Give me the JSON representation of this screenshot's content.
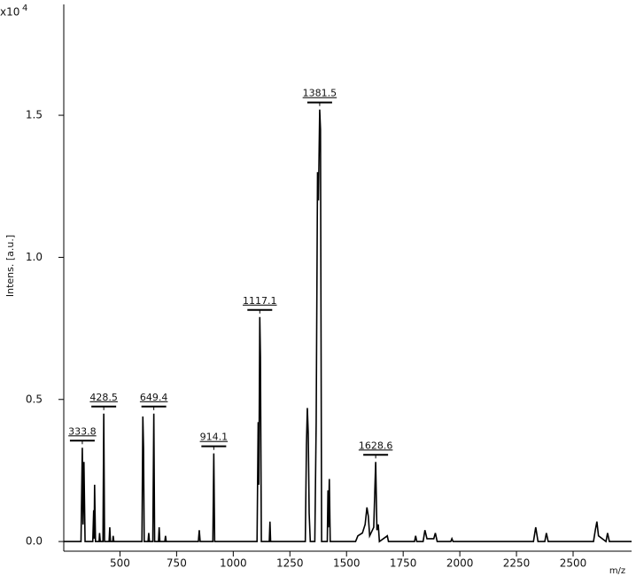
{
  "chart_data": {
    "type": "line",
    "y_label": "Intens. [a.u.]",
    "x_label": "m/z",
    "y_multiplier": "x10",
    "y_multiplier_exp": "4",
    "color": "#000000",
    "xlim": [
      252,
      2758
    ],
    "ylim": [
      -0.034,
      1.89
    ],
    "xticks": [
      500,
      750,
      1000,
      1250,
      1500,
      1750,
      2000,
      2250,
      2500
    ],
    "yticks": [
      {
        "value": 0,
        "label": "0.0"
      },
      0.5,
      {
        "value": 1,
        "label": "1.0"
      },
      1.5
    ],
    "peak_labels": [
      {
        "value": 333.8,
        "label": "333.8"
      },
      {
        "value": 428.5,
        "label": "428.5"
      },
      {
        "value": 649.4,
        "label": "649.4"
      },
      {
        "value": 914.1,
        "label": "914.1"
      },
      {
        "value": 1117.1,
        "label": "1117.1"
      },
      {
        "value": 1381.5,
        "label": "1381.5"
      },
      {
        "value": 1628.6,
        "label": "1628.6"
      }
    ],
    "x": [
      252,
      328,
      333.8,
      337,
      341,
      346,
      380,
      384,
      386,
      388,
      392,
      408,
      410,
      413,
      425,
      428.5,
      432,
      452,
      455,
      458,
      468,
      470,
      473,
      597,
      601,
      604,
      607,
      624,
      627,
      630,
      645,
      649.4,
      653,
      670,
      673,
      676,
      698,
      701,
      704,
      846,
      850,
      854,
      910,
      914.1,
      918,
      1105,
      1110,
      1113,
      1117.1,
      1120,
      1124,
      1159,
      1162,
      1165,
      1318,
      1323,
      1327,
      1331,
      1335,
      1340,
      1360,
      1366,
      1372,
      1376,
      1381.5,
      1385,
      1390,
      1415,
      1418,
      1420,
      1424,
      1428,
      1540,
      1550,
      1570,
      1582,
      1590,
      1596,
      1602,
      1620,
      1628.6,
      1634,
      1640,
      1645,
      1680,
      1685,
      1800,
      1805,
      1810,
      1838,
      1846,
      1855,
      1885,
      1892,
      1900,
      1960,
      1965,
      1970,
      2325,
      2335,
      2345,
      2375,
      2382,
      2390,
      2590,
      2598,
      2605,
      2612,
      2645,
      2652,
      2660,
      2758
    ],
    "values": [
      0,
      0,
      0.33,
      0.06,
      0.28,
      0,
      0,
      0.11,
      0.01,
      0.2,
      0,
      0,
      0.03,
      0,
      0,
      0.45,
      0,
      0,
      0.05,
      0,
      0,
      0.02,
      0,
      0,
      0.44,
      0.33,
      0,
      0,
      0.03,
      0,
      0,
      0.45,
      0,
      0,
      0.05,
      0,
      0,
      0.02,
      0,
      0,
      0.04,
      0,
      0,
      0.31,
      0,
      0,
      0.42,
      0.2,
      0.79,
      0.65,
      0,
      0,
      0.07,
      0,
      0,
      0.34,
      0.47,
      0.38,
      0.1,
      0,
      0,
      0.42,
      1.3,
      1.2,
      1.52,
      1.45,
      0,
      0,
      0.18,
      0.05,
      0.22,
      0,
      0,
      0.02,
      0.03,
      0.06,
      0.12,
      0.09,
      0.02,
      0.05,
      0.28,
      0.04,
      0.06,
      0,
      0.02,
      0,
      0,
      0.02,
      0,
      0,
      0.04,
      0.01,
      0.01,
      0.03,
      0,
      0,
      0.01,
      0,
      0,
      0.05,
      0,
      0,
      0.03,
      0,
      0,
      0.04,
      0.07,
      0.02,
      0,
      0.03,
      0,
      0
    ]
  }
}
